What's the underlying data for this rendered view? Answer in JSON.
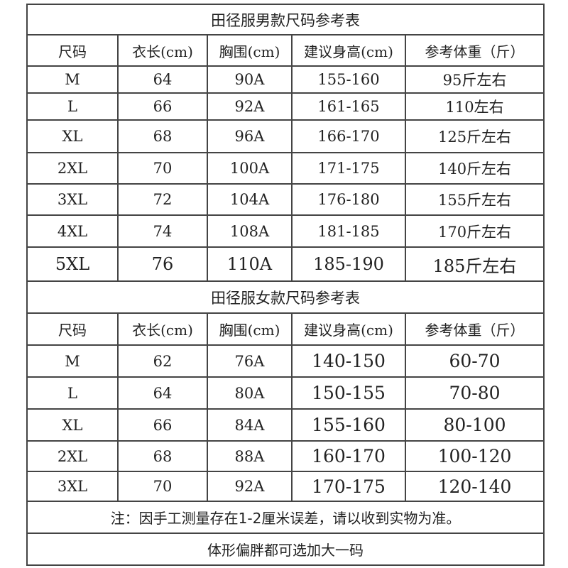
{
  "men": {
    "title": "田径服男款尺码参考表",
    "headers": [
      "尺码",
      "衣长(cm)",
      "胸围(cm)",
      "建议身高(cm)",
      "参考体重（斤）"
    ],
    "rows": [
      [
        "M",
        "64",
        "90A",
        "155-160",
        "95斤左右"
      ],
      [
        "L",
        "66",
        "92A",
        "161-165",
        "110左右"
      ],
      [
        "XL",
        "68",
        "96A",
        "166-170",
        "125斤左右"
      ],
      [
        "2XL",
        "70",
        "100A",
        "171-175",
        "140斤左右"
      ],
      [
        "3XL",
        "72",
        "104A",
        "176-180",
        "155斤左右"
      ],
      [
        "4XL",
        "74",
        "108A",
        "181-185",
        "170斤左右"
      ],
      [
        "5XL",
        "76",
        "110A",
        "185-190",
        "185斤左右"
      ]
    ]
  },
  "women": {
    "title": "田径服女款尺码参考表",
    "headers": [
      "尺码",
      "衣长(cm)",
      "胸围(cm)",
      "建议身高(cm)",
      "参考体重（斤）"
    ],
    "rows": [
      [
        "M",
        "62",
        "76A",
        "140-150",
        "60-70"
      ],
      [
        "L",
        "64",
        "80A",
        "150-155",
        "70-80"
      ],
      [
        "XL",
        "66",
        "84A",
        "155-160",
        "80-100"
      ],
      [
        "2XL",
        "68",
        "88A",
        "160-170",
        "100-120"
      ],
      [
        "3XL",
        "70",
        "92A",
        "170-175",
        "120-140"
      ]
    ]
  },
  "note": "注：因手工测量存在1-2厘米误差，请以收到实物为准。",
  "footer": "体形偏胖都可选加大一码"
}
